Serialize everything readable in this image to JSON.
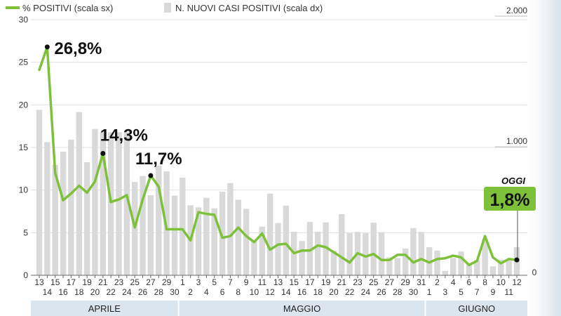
{
  "legend": {
    "line_label": "% POSITIVI (scala sx)",
    "bar_label": "N. NUOVI CASI POSITIVI (scala dx)",
    "position": "top-left"
  },
  "chart_data": {
    "type": "bar+line",
    "grid": true,
    "left_axis": {
      "ylim": [
        0,
        30
      ],
      "ticks": [
        "0",
        "5",
        "10",
        "15",
        "20",
        "25",
        "30"
      ]
    },
    "right_axis": {
      "ylim": [
        0,
        2000
      ],
      "ticks": [
        "0",
        "1.000",
        "2.000"
      ]
    },
    "x_ticks": [
      "13",
      "14",
      "15",
      "16",
      "17",
      "18",
      "19",
      "20",
      "21",
      "22",
      "23",
      "24",
      "25",
      "26",
      "27",
      "28",
      "29",
      "30",
      "1",
      "2",
      "3",
      "4",
      "5",
      "6",
      "7",
      "8",
      "9",
      "10",
      "11",
      "12",
      "13",
      "14",
      "15",
      "16",
      "17",
      "18",
      "19",
      "20",
      "21",
      "22",
      "23",
      "24",
      "25",
      "26",
      "27",
      "28",
      "29",
      "30",
      "31",
      "1",
      "2",
      "3",
      "4",
      "5",
      "6",
      "7",
      "8",
      "9",
      "10",
      "11",
      "12"
    ],
    "months": [
      {
        "label": "APRILE",
        "count": 18
      },
      {
        "label": "MAGGIO",
        "count": 31
      },
      {
        "label": "GIUGNO",
        "count": 12
      }
    ],
    "series": [
      {
        "name": "N. NUOVI CASI POSITIVI (scala dx)",
        "kind": "bar",
        "axis": "right",
        "values": [
          1267,
          1020,
          846,
          946,
          1038,
          1250,
          866,
          1120,
          1095,
          1095,
          1095,
          1095,
          715,
          760,
          613,
          840,
          796,
          610,
          747,
          536,
          520,
          593,
          513,
          640,
          706,
          578,
          508,
          262,
          372,
          625,
          400,
          533,
          333,
          262,
          408,
          333,
          405,
          190,
          468,
          322,
          332,
          322,
          403,
          330,
          137,
          132,
          205,
          362,
          332,
          215,
          188,
          33,
          133,
          182,
          93,
          115,
          280,
          68,
          118,
          120,
          215
        ],
        "color": "#d9d9d9"
      },
      {
        "name": "% POSITIVI (scala sx)",
        "kind": "line",
        "axis": "left",
        "values": [
          24.1,
          26.8,
          12.0,
          8.8,
          9.6,
          10.5,
          9.7,
          11.0,
          14.3,
          8.6,
          8.9,
          9.4,
          5.6,
          8.9,
          11.7,
          10.4,
          5.4,
          5.4,
          5.4,
          4.1,
          7.4,
          7.2,
          7.1,
          4.4,
          4.6,
          5.6,
          4.6,
          3.9,
          4.9,
          3.0,
          3.6,
          3.7,
          2.6,
          2.9,
          2.9,
          3.5,
          3.3,
          2.7,
          2.1,
          1.5,
          2.6,
          2.2,
          2.5,
          1.8,
          1.8,
          2.4,
          2.4,
          1.5,
          1.9,
          1.5,
          1.9,
          2.0,
          2.3,
          2.1,
          1.2,
          1.7,
          4.6,
          2.1,
          1.4,
          1.9,
          1.8
        ],
        "color": "#7dc13a"
      }
    ],
    "annotations": [
      {
        "text": "26,8%",
        "index": 1
      },
      {
        "text": "14,3%",
        "index": 8
      },
      {
        "text": "11,7%",
        "index": 14
      }
    ],
    "callout": {
      "title": "OGGI",
      "value": "1,8%",
      "index": 60,
      "bg": "#7dc13a"
    }
  }
}
